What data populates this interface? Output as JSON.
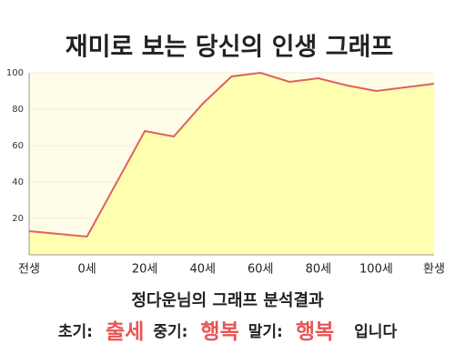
{
  "chart_data": {
    "type": "area",
    "title": "재미로 보는 당신의 인생 그래프",
    "categories": [
      "전생",
      null,
      "0세",
      null,
      "20세",
      null,
      "40세",
      null,
      "60세",
      null,
      "80세",
      null,
      "100세",
      null,
      "환생"
    ],
    "values": [
      13,
      11.5,
      10,
      39,
      68,
      65,
      83,
      98,
      100,
      95,
      97,
      93,
      90,
      92,
      94
    ],
    "color": "#e06060",
    "fill": "#ffffb0",
    "ylim": [
      0,
      100
    ],
    "yticks": [
      20,
      40,
      60,
      80,
      100
    ],
    "grid": true
  },
  "result": {
    "heading": "정다운님의 그래프 분석결과",
    "items": [
      {
        "label": "초기:",
        "value": "출세"
      },
      {
        "label": "중기:",
        "value": "행복"
      },
      {
        "label": "말기:",
        "value": "행복"
      }
    ],
    "ending": "입니다"
  }
}
